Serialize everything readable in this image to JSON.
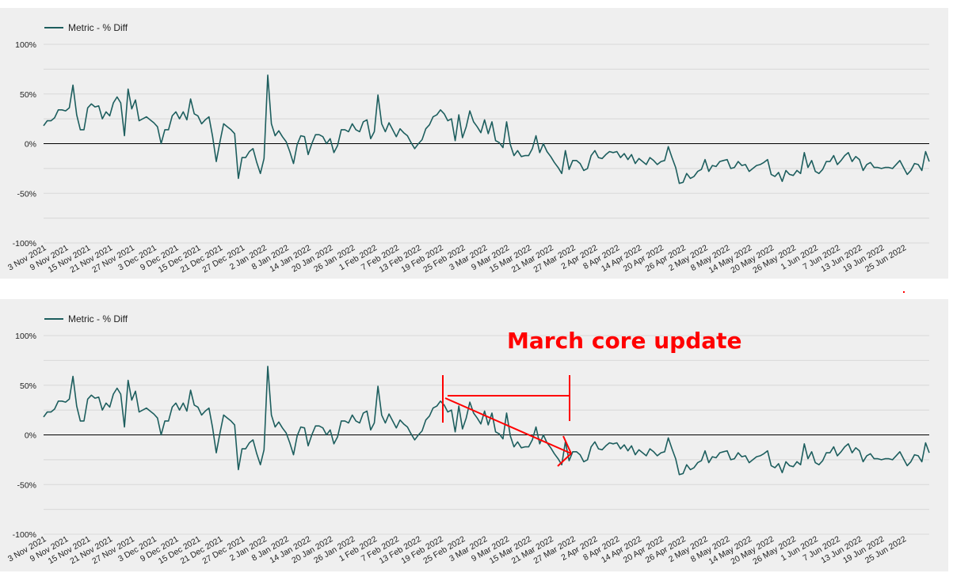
{
  "colors": {
    "line": "#1d5e5e",
    "grid": "#d8d8d8",
    "zero": "#000000",
    "annotation": "#ff0000"
  },
  "annotation": {
    "text": "March core update"
  },
  "chart_data": [
    {
      "type": "line",
      "legend_position": "top-left",
      "grid": true,
      "ylim": [
        -100,
        100
      ],
      "y_ticks": [
        100,
        50,
        0,
        -50,
        -100
      ],
      "y_tick_labels": [
        "100%",
        "50%",
        "0%",
        "-50%",
        "-100%"
      ],
      "x_tick_labels": [
        "3 Nov 2021",
        "9 Nov 2021",
        "15 Nov 2021",
        "21 Nov 2021",
        "27 Nov 2021",
        "3 Dec 2021",
        "9 Dec 2021",
        "15 Dec 2021",
        "21 Dec 2021",
        "27 Dec 2021",
        "2 Jan 2022",
        "8 Jan 2022",
        "14 Jan 2022",
        "20 Jan 2022",
        "26 Jan 2022",
        "1 Feb 2022",
        "7 Feb 2022",
        "13 Feb 2022",
        "19 Feb 2022",
        "25 Feb 2022",
        "3 Mar 2022",
        "9 Mar 2022",
        "15 Mar 2022",
        "21 Mar 2022",
        "27 Mar 2022",
        "2 Apr 2022",
        "8 Apr 2022",
        "14 Apr 2022",
        "20 Apr 2022",
        "26 Apr 2022",
        "2 May 2022",
        "8 May 2022",
        "14 May 2022",
        "20 May 2022",
        "26 May 2022",
        "1 Jun 2022",
        "7 Jun 2022",
        "13 Jun 2022",
        "19 Jun 2022",
        "25 Jun 2022"
      ],
      "series": [
        {
          "name": "Metric - % Diff",
          "values": [
            18,
            23,
            23,
            26,
            34,
            34,
            33,
            36,
            59,
            29,
            14,
            14,
            36,
            40,
            37,
            38,
            25,
            32,
            28,
            41,
            47,
            41,
            8,
            55,
            35,
            44,
            23,
            25,
            27,
            24,
            21,
            17,
            0,
            14,
            14,
            28,
            32,
            25,
            32,
            24,
            45,
            30,
            28,
            20,
            24,
            27,
            7,
            -18,
            2,
            20,
            17,
            14,
            10,
            -35,
            -14,
            -14,
            -8,
            -5,
            -19,
            -30,
            -15,
            69,
            20,
            8,
            13,
            7,
            2,
            -8,
            -20,
            -1,
            8,
            7,
            -11,
            0,
            9,
            9,
            7,
            0,
            5,
            -9,
            -2,
            14,
            14,
            12,
            20,
            14,
            12,
            22,
            24,
            5,
            12,
            49,
            20,
            12,
            21,
            14,
            7,
            15,
            11,
            8,
            1,
            -5,
            0,
            4,
            15,
            19,
            27,
            29,
            34,
            30,
            23,
            25,
            3,
            29,
            6,
            17,
            33,
            22,
            17,
            11,
            24,
            10,
            22,
            3,
            1,
            -4,
            22,
            -1,
            -12,
            -7,
            -13,
            -12,
            -12,
            -5,
            8,
            -9,
            0,
            -8,
            -13,
            -19,
            -24,
            -30,
            -7,
            -26,
            -17,
            -17,
            -20,
            -27,
            -25,
            -12,
            -7,
            -14,
            -15,
            -11,
            -8,
            -9,
            -8,
            -14,
            -10,
            -16,
            -11,
            -20,
            -15,
            -18,
            -21,
            -14,
            -17,
            -21,
            -18,
            -17,
            -3,
            -14,
            -24,
            -40,
            -39,
            -30,
            -35,
            -33,
            -28,
            -26,
            -16,
            -28,
            -22,
            -23,
            -18,
            -17,
            -16,
            -25,
            -24,
            -18,
            -22,
            -21,
            -28,
            -25,
            -22,
            -21,
            -19,
            -16,
            -31,
            -33,
            -29,
            -38,
            -27,
            -31,
            -32,
            -27,
            -30,
            -9,
            -24,
            -17,
            -28,
            -30,
            -26,
            -18,
            -18,
            -12,
            -21,
            -17,
            -12,
            -9,
            -18,
            -13,
            -16,
            -27,
            -21,
            -19,
            -24,
            -24,
            -25,
            -24,
            -24,
            -25,
            -21,
            -17,
            -24,
            -31,
            -27,
            -20,
            -21,
            -27,
            -8,
            -18
          ]
        }
      ]
    },
    {
      "type": "line",
      "legend_position": "top-left",
      "grid": true,
      "ylim": [
        -100,
        100
      ],
      "y_ticks": [
        100,
        50,
        0,
        -50,
        -100
      ],
      "y_tick_labels": [
        "100%",
        "50%",
        "0%",
        "-50%",
        "-100%"
      ],
      "x_tick_labels": [
        "3 Nov 2021",
        "9 Nov 2021",
        "15 Nov 2021",
        "21 Nov 2021",
        "27 Nov 2021",
        "3 Dec 2021",
        "9 Dec 2021",
        "15 Dec 2021",
        "21 Dec 2021",
        "27 Dec 2021",
        "2 Jan 2022",
        "8 Jan 2022",
        "14 Jan 2022",
        "20 Jan 2022",
        "26 Jan 2022",
        "1 Feb 2022",
        "7 Feb 2022",
        "13 Feb 2022",
        "19 Feb 2022",
        "25 Feb 2022",
        "3 Mar 2022",
        "9 Mar 2022",
        "15 Mar 2022",
        "21 Mar 2022",
        "27 Mar 2022",
        "2 Apr 2022",
        "8 Apr 2022",
        "14 Apr 2022",
        "20 Apr 2022",
        "26 Apr 2022",
        "2 May 2022",
        "8 May 2022",
        "14 May 2022",
        "20 May 2022",
        "26 May 2022",
        "1 Jun 2022",
        "7 Jun 2022",
        "13 Jun 2022",
        "19 Jun 2022",
        "25 Jun 2022"
      ],
      "series": [
        {
          "name": "Metric - % Diff",
          "values": [
            18,
            23,
            23,
            26,
            34,
            34,
            33,
            36,
            59,
            29,
            14,
            14,
            36,
            40,
            37,
            38,
            25,
            32,
            28,
            41,
            47,
            41,
            8,
            55,
            35,
            44,
            23,
            25,
            27,
            24,
            21,
            17,
            0,
            14,
            14,
            28,
            32,
            25,
            32,
            24,
            45,
            30,
            28,
            20,
            24,
            27,
            7,
            -18,
            2,
            20,
            17,
            14,
            10,
            -35,
            -14,
            -14,
            -8,
            -5,
            -19,
            -30,
            -15,
            69,
            20,
            8,
            13,
            7,
            2,
            -8,
            -20,
            -1,
            8,
            7,
            -11,
            0,
            9,
            9,
            7,
            0,
            5,
            -9,
            -2,
            14,
            14,
            12,
            20,
            14,
            12,
            22,
            24,
            5,
            12,
            49,
            20,
            12,
            21,
            14,
            7,
            15,
            11,
            8,
            1,
            -5,
            0,
            4,
            15,
            19,
            27,
            29,
            34,
            30,
            23,
            25,
            3,
            29,
            6,
            17,
            33,
            22,
            17,
            11,
            24,
            10,
            22,
            3,
            1,
            -4,
            22,
            -1,
            -12,
            -7,
            -13,
            -12,
            -12,
            -5,
            8,
            -9,
            0,
            -8,
            -13,
            -19,
            -24,
            -30,
            -7,
            -26,
            -17,
            -17,
            -20,
            -27,
            -25,
            -12,
            -7,
            -14,
            -15,
            -11,
            -8,
            -9,
            -8,
            -14,
            -10,
            -16,
            -11,
            -20,
            -15,
            -18,
            -21,
            -14,
            -17,
            -21,
            -18,
            -17,
            -3,
            -14,
            -24,
            -40,
            -39,
            -30,
            -35,
            -33,
            -28,
            -26,
            -16,
            -28,
            -22,
            -23,
            -18,
            -17,
            -16,
            -25,
            -24,
            -18,
            -22,
            -21,
            -28,
            -25,
            -22,
            -21,
            -19,
            -16,
            -31,
            -33,
            -29,
            -38,
            -27,
            -31,
            -32,
            -27,
            -30,
            -9,
            -24,
            -17,
            -28,
            -30,
            -26,
            -18,
            -18,
            -12,
            -21,
            -17,
            -12,
            -9,
            -18,
            -13,
            -16,
            -27,
            -21,
            -19,
            -24,
            -24,
            -25,
            -24,
            -24,
            -25,
            -21,
            -17,
            -24,
            -31,
            -27,
            -20,
            -21,
            -27,
            -8,
            -18
          ]
        }
      ]
    }
  ]
}
